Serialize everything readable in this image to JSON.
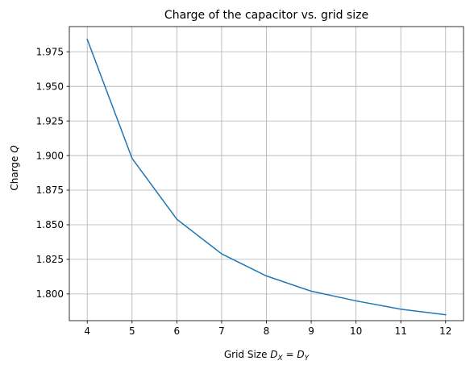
{
  "chart_data": {
    "type": "line",
    "title": "Charge of the capacitor vs. grid size",
    "xlabel_prefix": "Grid Size ",
    "xlabel_math": {
      "D": "D",
      "sub1": "X",
      "eq": " = ",
      "sub2": "Y"
    },
    "ylabel_prefix": "Charge ",
    "ylabel_math": "Q",
    "x": [
      4,
      5,
      6,
      7,
      8,
      9,
      10,
      11,
      12
    ],
    "series": [
      {
        "values": [
          1.984,
          1.898,
          1.854,
          1.829,
          1.813,
          1.802,
          1.795,
          1.789,
          1.785
        ]
      }
    ],
    "xlim": [
      3.6,
      12.4
    ],
    "ylim": [
      1.7807,
      1.9932
    ],
    "xticks": [
      4,
      5,
      6,
      7,
      8,
      9,
      10,
      11,
      12
    ],
    "xtick_labels": [
      "4",
      "5",
      "6",
      "7",
      "8",
      "9",
      "10",
      "11",
      "12"
    ],
    "yticks": [
      1.8,
      1.825,
      1.85,
      1.875,
      1.9,
      1.925,
      1.95,
      1.975
    ],
    "ytick_labels": [
      "1.800",
      "1.825",
      "1.850",
      "1.875",
      "1.900",
      "1.925",
      "1.950",
      "1.975"
    ],
    "grid": true,
    "line_color": "#1f77b4",
    "grid_color": "#b0b0b0"
  }
}
